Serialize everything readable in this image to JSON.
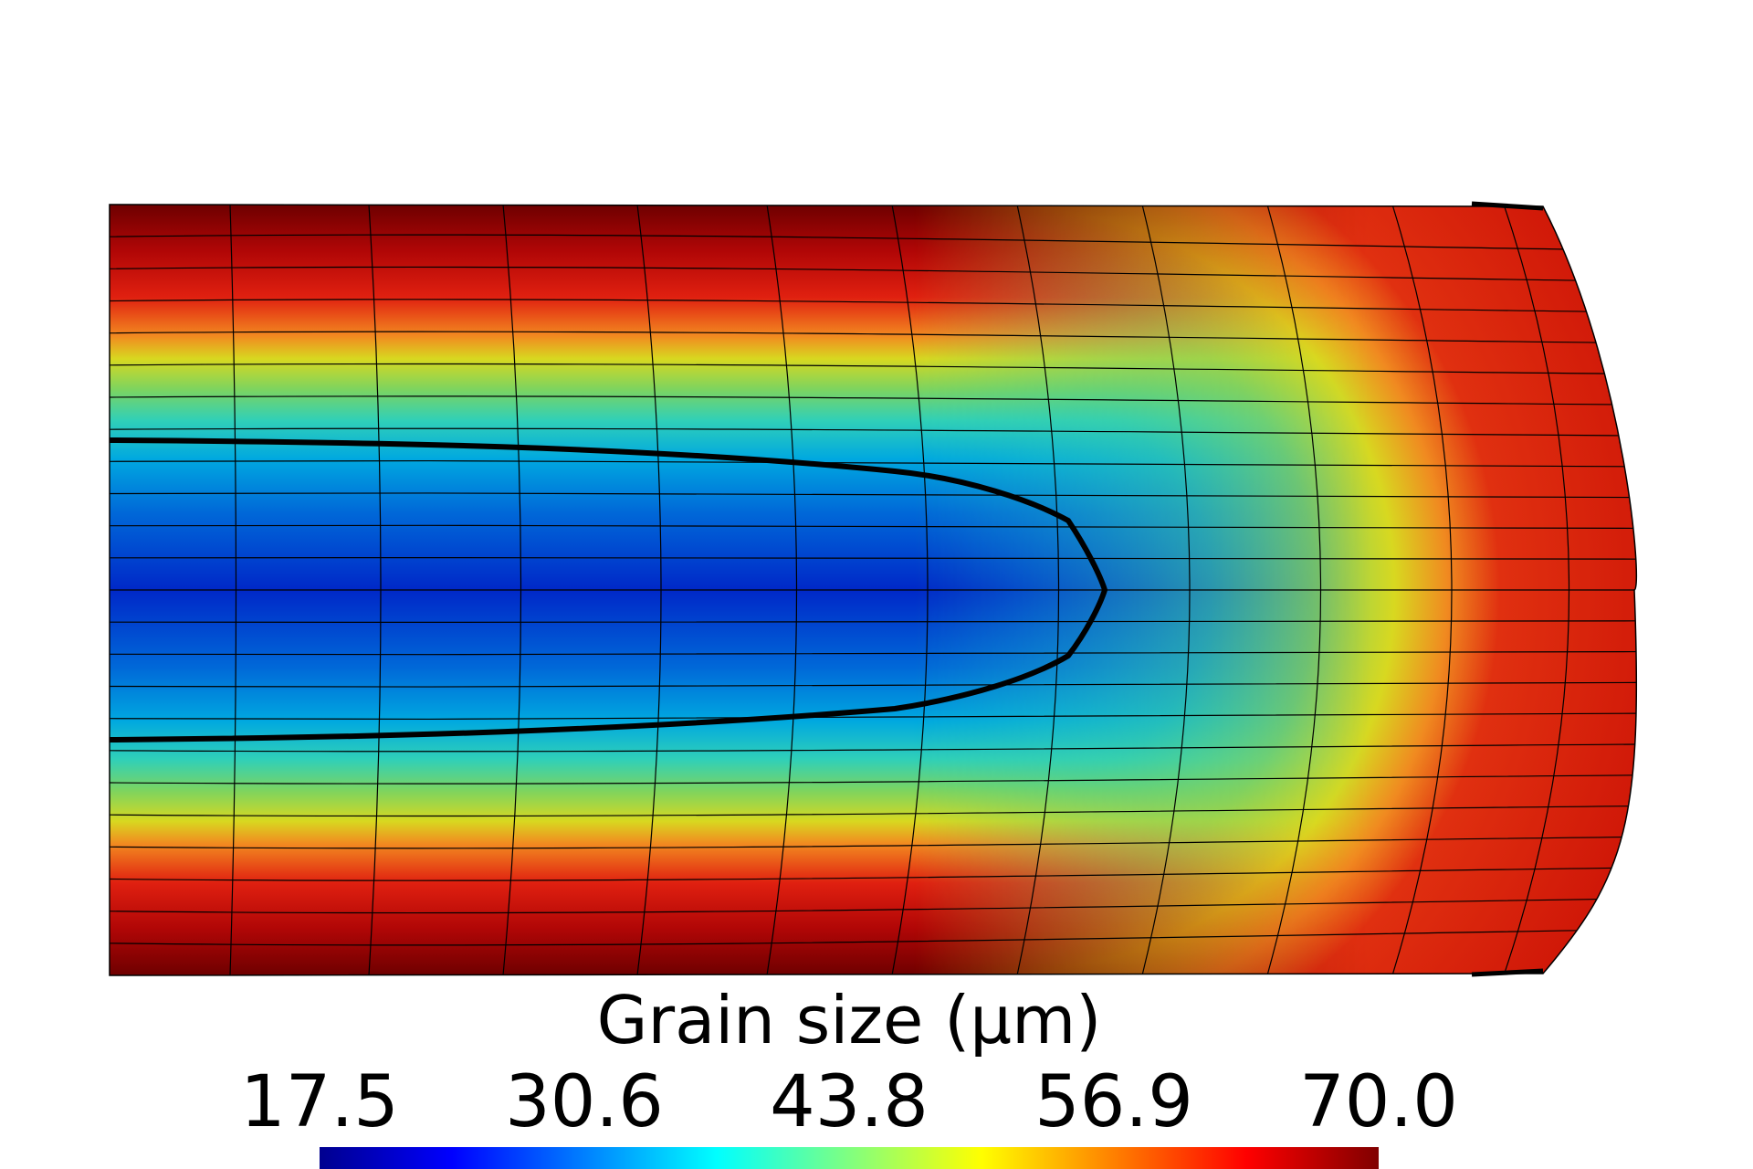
{
  "legend": {
    "title": "Grain size (μm)",
    "ticks": [
      "17.5",
      "30.6",
      "43.8",
      "56.9",
      "70.0"
    ],
    "range": [
      17.5,
      70.0
    ],
    "colormap": [
      "#00008f",
      "#0000ff",
      "#0080ff",
      "#00ffff",
      "#80ff80",
      "#ffff00",
      "#ff8000",
      "#ff0000",
      "#800000"
    ]
  },
  "field_colors": {
    "low": "#0020c8",
    "mid_low": "#00c8d8",
    "mid": "#5cd070",
    "mid_high": "#e8e010",
    "high": "#e01808",
    "max": "#7a0000",
    "contour": "#000000",
    "mesh": "#000000"
  }
}
